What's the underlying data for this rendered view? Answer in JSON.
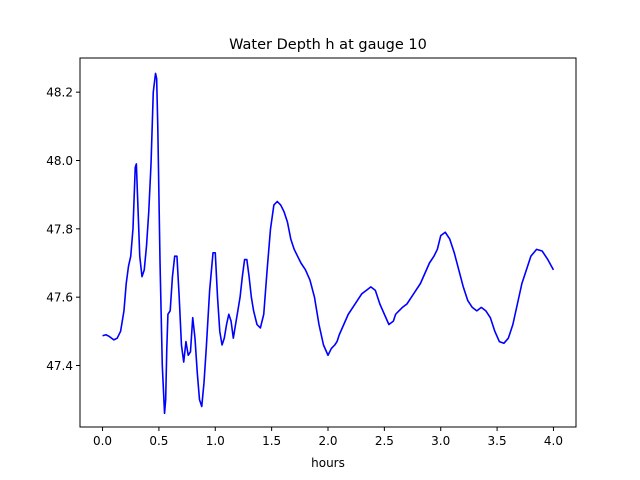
{
  "chart_data": {
    "type": "line",
    "title": "Water Depth h at gauge 10",
    "xlabel": "hours",
    "ylabel": "",
    "xlim": [
      -0.2,
      4.2
    ],
    "ylim": [
      47.22,
      48.3
    ],
    "xticks": [
      0.0,
      0.5,
      1.0,
      1.5,
      2.0,
      2.5,
      3.0,
      3.5,
      4.0
    ],
    "xtick_labels": [
      "0.0",
      "0.5",
      "1.0",
      "1.5",
      "2.0",
      "2.5",
      "3.0",
      "3.5",
      "4.0"
    ],
    "yticks": [
      47.4,
      47.6,
      47.8,
      48.0,
      48.2
    ],
    "ytick_labels": [
      "47.4",
      "47.6",
      "47.8",
      "48.0",
      "48.2"
    ],
    "grid": false,
    "series": [
      {
        "color": "#0000ff",
        "x": [
          0.0,
          0.03,
          0.06,
          0.1,
          0.13,
          0.16,
          0.19,
          0.21,
          0.23,
          0.25,
          0.27,
          0.29,
          0.3,
          0.31,
          0.33,
          0.35,
          0.37,
          0.39,
          0.41,
          0.43,
          0.45,
          0.47,
          0.48,
          0.49,
          0.5,
          0.51,
          0.53,
          0.55,
          0.56,
          0.57,
          0.58,
          0.6,
          0.62,
          0.64,
          0.66,
          0.68,
          0.7,
          0.72,
          0.74,
          0.76,
          0.78,
          0.8,
          0.82,
          0.84,
          0.86,
          0.88,
          0.9,
          0.92,
          0.95,
          0.98,
          1.0,
          1.02,
          1.04,
          1.06,
          1.08,
          1.1,
          1.12,
          1.14,
          1.16,
          1.18,
          1.2,
          1.22,
          1.24,
          1.26,
          1.28,
          1.3,
          1.32,
          1.34,
          1.37,
          1.4,
          1.43,
          1.46,
          1.49,
          1.52,
          1.55,
          1.58,
          1.61,
          1.64,
          1.67,
          1.7,
          1.73,
          1.76,
          1.8,
          1.84,
          1.88,
          1.92,
          1.96,
          2.0,
          2.03,
          2.06,
          2.08,
          2.1,
          2.14,
          2.18,
          2.22,
          2.26,
          2.3,
          2.34,
          2.38,
          2.42,
          2.46,
          2.5,
          2.54,
          2.58,
          2.6,
          2.63,
          2.66,
          2.7,
          2.74,
          2.78,
          2.82,
          2.86,
          2.9,
          2.94,
          2.97,
          3.0,
          3.04,
          3.08,
          3.12,
          3.16,
          3.2,
          3.24,
          3.28,
          3.32,
          3.36,
          3.4,
          3.44,
          3.48,
          3.52,
          3.56,
          3.6,
          3.64,
          3.68,
          3.72,
          3.76,
          3.8,
          3.85,
          3.9,
          3.95,
          4.0
        ],
        "y": [
          47.487,
          47.49,
          47.485,
          47.475,
          47.48,
          47.5,
          47.56,
          47.64,
          47.69,
          47.72,
          47.8,
          47.98,
          47.99,
          47.9,
          47.72,
          47.66,
          47.68,
          47.75,
          47.85,
          47.99,
          48.2,
          48.255,
          48.24,
          48.1,
          47.9,
          47.7,
          47.4,
          47.26,
          47.3,
          47.45,
          47.55,
          47.56,
          47.66,
          47.72,
          47.72,
          47.6,
          47.46,
          47.41,
          47.47,
          47.43,
          47.44,
          47.54,
          47.48,
          47.38,
          47.3,
          47.28,
          47.35,
          47.45,
          47.62,
          47.73,
          47.73,
          47.6,
          47.5,
          47.46,
          47.48,
          47.52,
          47.55,
          47.53,
          47.48,
          47.52,
          47.56,
          47.6,
          47.66,
          47.71,
          47.71,
          47.66,
          47.6,
          47.56,
          47.52,
          47.51,
          47.55,
          47.68,
          47.8,
          47.87,
          47.88,
          47.87,
          47.85,
          47.82,
          47.77,
          47.74,
          47.72,
          47.7,
          47.68,
          47.65,
          47.6,
          47.52,
          47.46,
          47.43,
          47.45,
          47.46,
          47.47,
          47.49,
          47.52,
          47.55,
          47.57,
          47.59,
          47.61,
          47.62,
          47.63,
          47.62,
          47.58,
          47.55,
          47.52,
          47.53,
          47.55,
          47.56,
          47.57,
          47.58,
          47.6,
          47.62,
          47.64,
          47.67,
          47.7,
          47.72,
          47.74,
          47.78,
          47.79,
          47.77,
          47.73,
          47.68,
          47.63,
          47.59,
          47.57,
          47.56,
          47.57,
          47.56,
          47.54,
          47.5,
          47.47,
          47.465,
          47.48,
          47.52,
          47.58,
          47.64,
          47.68,
          47.72,
          47.74,
          47.735,
          47.71,
          47.68
        ]
      }
    ]
  }
}
